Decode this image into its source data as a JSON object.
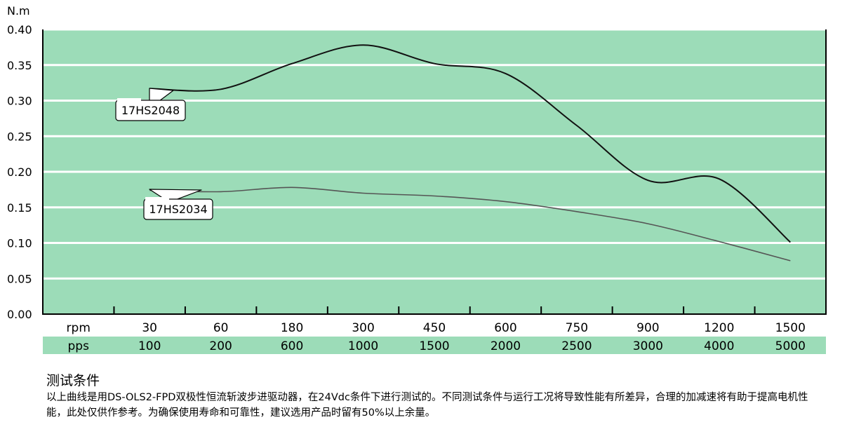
{
  "chart_data": {
    "type": "line",
    "ylabel": "N.m",
    "ylim": [
      0,
      0.4
    ],
    "yticks": [
      "0.00",
      "0.05",
      "0.10",
      "0.15",
      "0.20",
      "0.25",
      "0.30",
      "0.35",
      "0.40"
    ],
    "x_axis_rows": [
      {
        "label": "rpm",
        "values": [
          "30",
          "60",
          "180",
          "300",
          "450",
          "600",
          "750",
          "900",
          "1200",
          "1500"
        ]
      },
      {
        "label": "pps",
        "values": [
          "100",
          "200",
          "600",
          "1000",
          "1500",
          "2000",
          "2500",
          "3000",
          "4000",
          "5000"
        ]
      }
    ],
    "series": [
      {
        "name": "17HS2048",
        "x_index": [
          0,
          1,
          2,
          3,
          4,
          5,
          6,
          7,
          8,
          9
        ],
        "values": [
          0.317,
          0.316,
          0.352,
          0.378,
          0.352,
          0.338,
          0.265,
          0.188,
          0.19,
          0.101
        ]
      },
      {
        "name": "17HS2034",
        "x_index": [
          0,
          1,
          2,
          3,
          4,
          5,
          6,
          7,
          8,
          9
        ],
        "values": [
          0.174,
          0.172,
          0.178,
          0.17,
          0.166,
          0.158,
          0.144,
          0.127,
          0.102,
          0.075
        ]
      }
    ],
    "colors": {
      "plot_background": "#9cdcb8",
      "grid": "#ffffff",
      "series_1": "#111111",
      "series_2": "#555555",
      "pps_row_background": "#9cdcb8"
    },
    "grid": true
  },
  "note": {
    "title": "测试条件",
    "text": "以上曲线是用DS-OLS2-FPD双极性恒流斩波步进驱动器，在24Vdc条件下进行测试的。不同测试条件与运行工况将导致性能有所差异，合理的加减速将有助于提高电机性能，此处仅供作参考。为确保使用寿命和可靠性，建议选用产品时留有50%以上余量。"
  }
}
